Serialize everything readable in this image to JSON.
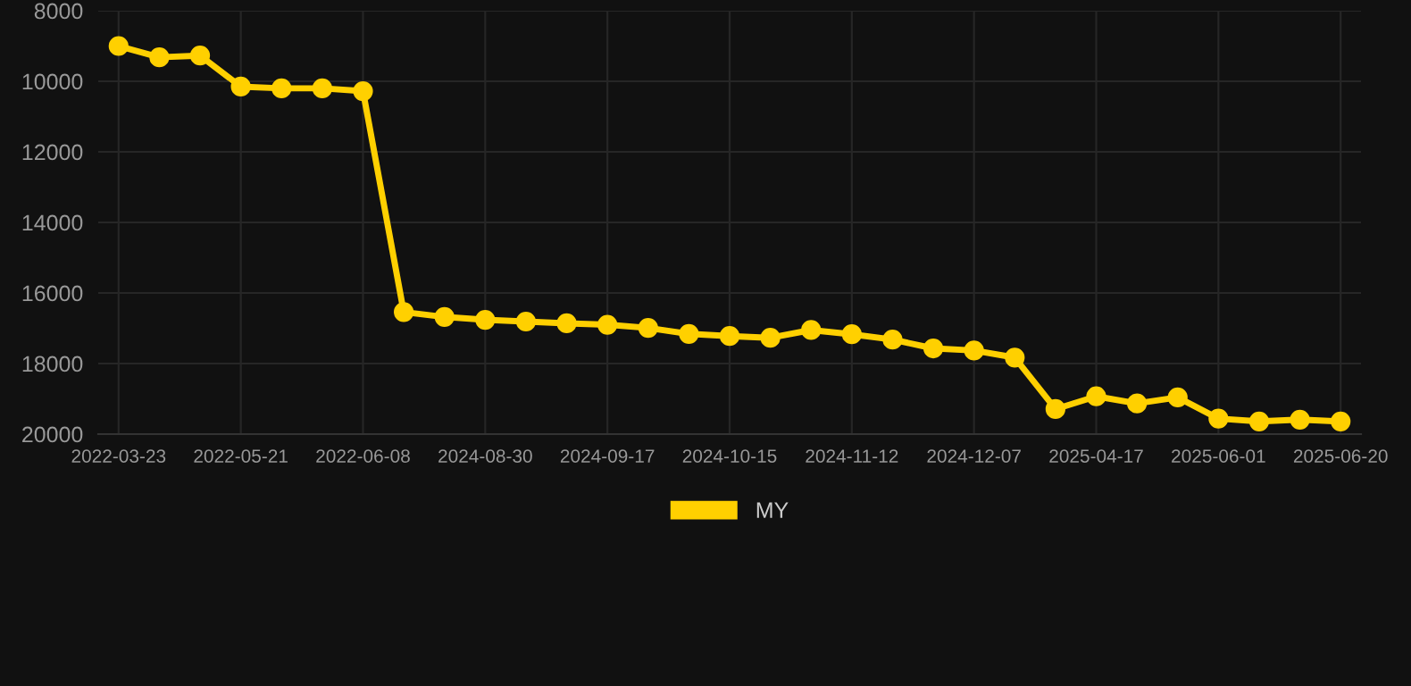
{
  "chart_data": {
    "type": "line",
    "categories": [
      "2022-03-23",
      null,
      null,
      "2022-05-21",
      null,
      null,
      "2022-06-08",
      null,
      null,
      "2024-08-30",
      null,
      null,
      "2024-09-17",
      null,
      null,
      "2024-10-15",
      null,
      null,
      "2024-11-12",
      null,
      null,
      "2024-12-07",
      null,
      null,
      "2025-04-17",
      null,
      null,
      "2025-06-01",
      null,
      null,
      "2025-06-20"
    ],
    "series": [
      {
        "name": "MY",
        "color": "#ffd000",
        "values": [
          9000,
          9320,
          9270,
          10150,
          10200,
          10200,
          10280,
          16540,
          16680,
          16760,
          16810,
          16860,
          16900,
          16990,
          17160,
          17220,
          17270,
          17050,
          17170,
          17320,
          17570,
          17630,
          17830,
          19290,
          18930,
          19130,
          18960,
          19560,
          19640,
          19590,
          19640
        ]
      }
    ],
    "ylim": [
      20000,
      8000
    ],
    "yticks": [
      8000,
      10000,
      12000,
      14000,
      16000,
      18000,
      20000
    ],
    "grid": true,
    "legend": "bottom",
    "marker": "circle",
    "line_style": "solid"
  }
}
